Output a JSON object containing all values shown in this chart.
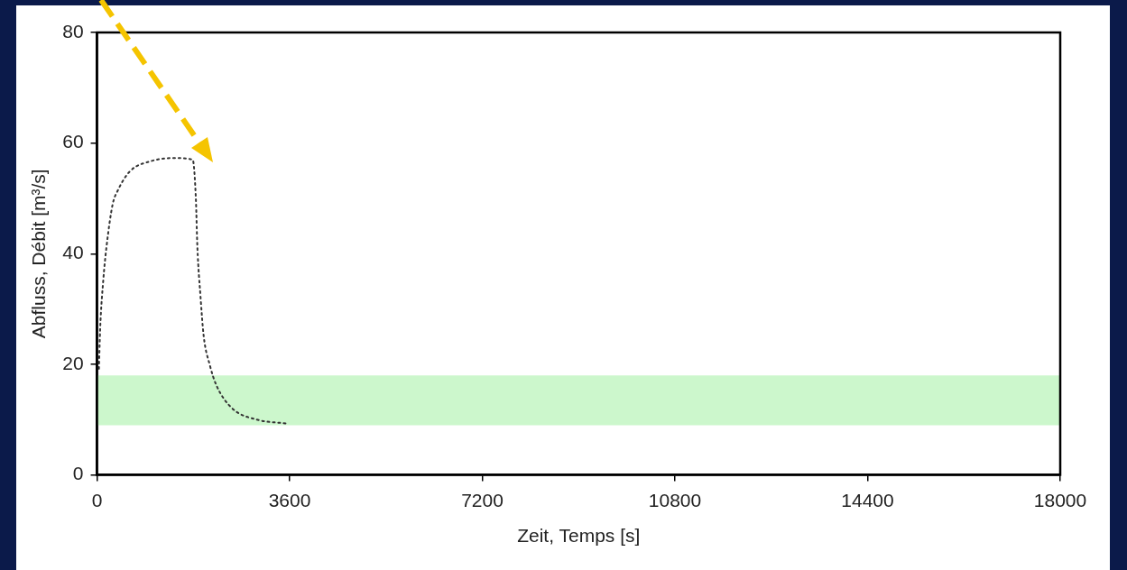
{
  "chart_data": {
    "type": "line",
    "xlabel": "Zeit, Temps [s]",
    "ylabel": "Abfluss, Débit [m³/s]",
    "xlim": [
      0,
      18000
    ],
    "xticks": [
      0,
      3600,
      7200,
      10800,
      14400,
      18000
    ],
    "ylim": [
      0,
      80
    ],
    "yticks": [
      0,
      20,
      40,
      60,
      80
    ],
    "grid": false,
    "legend": false,
    "marker": "none",
    "line_style": "dotted",
    "bands": [
      {
        "axis": "y",
        "from": 9,
        "to": 18,
        "color": "#ccf7cc"
      }
    ],
    "series": [
      {
        "color": "#333333",
        "x": [
          35,
          58,
          117,
          176,
          293,
          381,
          615,
          996,
          1432,
          1787,
          1846,
          1875,
          1933,
          1992,
          2109,
          2226,
          2519,
          2988,
          3545
        ],
        "values": [
          19.2,
          26.4,
          35.3,
          41.2,
          49,
          51.3,
          54.9,
          56.7,
          57.3,
          57,
          50.1,
          41.2,
          32.3,
          25.2,
          19.8,
          16.3,
          12.1,
          10,
          9.3
        ]
      }
    ]
  }
}
